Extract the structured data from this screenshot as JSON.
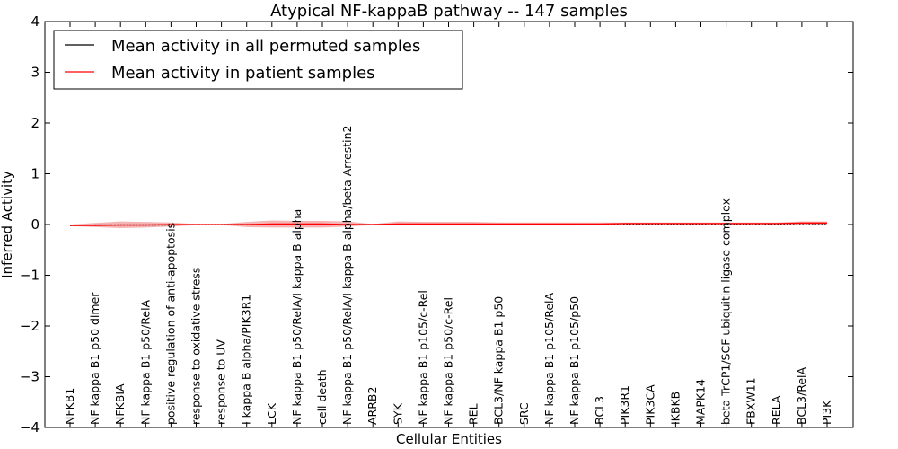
{
  "chart_data": {
    "type": "line",
    "title": "Atypical NF-kappaB pathway -- 147 samples",
    "xlabel": "Cellular Entities",
    "ylabel": "Inferred Activity",
    "ylim": [
      -4,
      4
    ],
    "yticks": [
      "−4",
      "−3",
      "−2",
      "−1",
      "0",
      "1",
      "2",
      "3",
      "4"
    ],
    "ytick_values": [
      -4,
      -3,
      -2,
      -1,
      0,
      1,
      2,
      3,
      4
    ],
    "grid": false,
    "legend_position": "top-left",
    "categories": [
      "NFKB1",
      "NF kappa B1 p50 dimer",
      "NFKBIA",
      "NF kappa B1 p50/RelA",
      "positive regulation of anti-apoptosis",
      "response to oxidative stress",
      "response to UV",
      "I kappa B alpha/PIK3R1",
      "LCK",
      "NF kappa B1 p50/RelA/I kappa B alpha",
      "cell death",
      "NF kappa B1 p50/RelA/I kappa B alpha/beta Arrestin2",
      "ARRB2",
      "SYK",
      "NF kappa B1 p105/c-Rel",
      "NF kappa B1 p50/c-Rel",
      "REL",
      "BCL3/NF kappa B1 p50",
      "SRC",
      "NF kappa B1 p105/RelA",
      "NF kappa B1 p105/p50",
      "BCL3",
      "PIK3R1",
      "PIK3CA",
      "IKBKB",
      "MAPK14",
      "beta TrCP1/SCF ubiquitin ligase complex",
      "FBXW11",
      "RELA",
      "BCL3/RelA",
      "PI3K"
    ],
    "series": [
      {
        "name": "Mean activity in all permuted samples",
        "color": "#000000",
        "style": "dotted",
        "values": [
          -0.02,
          -0.01,
          -0.01,
          -0.01,
          -0.01,
          0.0,
          0.0,
          0.0,
          0.0,
          0.0,
          0.0,
          0.0,
          0.0,
          0.0,
          0.0,
          0.0,
          0.0,
          0.0,
          0.0,
          0.0,
          0.0,
          0.0,
          0.0,
          0.0,
          0.0,
          0.0,
          0.0,
          0.0,
          0.0,
          0.0,
          0.0
        ],
        "band_lower": [
          -0.03,
          -0.03,
          -0.02,
          -0.02,
          -0.02,
          -0.01,
          -0.01,
          -0.01,
          -0.01,
          -0.01,
          -0.01,
          -0.01,
          -0.01,
          -0.01,
          -0.01,
          -0.01,
          -0.01,
          -0.01,
          -0.01,
          -0.01,
          -0.01,
          -0.01,
          -0.01,
          -0.01,
          -0.01,
          -0.01,
          -0.01,
          -0.01,
          -0.01,
          -0.01,
          -0.01
        ],
        "band_upper": [
          0.0,
          0.01,
          0.01,
          0.01,
          0.01,
          0.01,
          0.01,
          0.01,
          0.01,
          0.01,
          0.01,
          0.01,
          0.01,
          0.01,
          0.01,
          0.01,
          0.01,
          0.01,
          0.01,
          0.01,
          0.01,
          0.01,
          0.01,
          0.01,
          0.01,
          0.01,
          0.01,
          0.01,
          0.01,
          0.01,
          0.01
        ]
      },
      {
        "name": "Mean activity in patient samples",
        "color": "#ff0000",
        "style": "solid",
        "values": [
          -0.02,
          -0.02,
          -0.01,
          -0.01,
          0.0,
          0.0,
          0.0,
          0.0,
          0.01,
          0.01,
          0.01,
          0.0,
          0.0,
          0.01,
          0.01,
          0.01,
          0.01,
          0.01,
          0.01,
          0.01,
          0.01,
          0.01,
          0.02,
          0.02,
          0.02,
          0.02,
          0.02,
          0.02,
          0.02,
          0.03,
          0.03
        ],
        "band_lower": [
          -0.03,
          -0.05,
          -0.07,
          -0.06,
          -0.04,
          -0.01,
          -0.01,
          -0.05,
          -0.06,
          -0.06,
          -0.06,
          -0.04,
          -0.01,
          -0.01,
          -0.02,
          -0.02,
          -0.02,
          -0.02,
          -0.02,
          -0.02,
          -0.02,
          -0.01,
          -0.01,
          -0.01,
          -0.01,
          -0.01,
          -0.01,
          -0.01,
          -0.01,
          -0.01,
          -0.01
        ],
        "band_upper": [
          0.0,
          0.03,
          0.06,
          0.05,
          0.04,
          0.01,
          0.01,
          0.05,
          0.08,
          0.07,
          0.07,
          0.06,
          0.01,
          0.06,
          0.05,
          0.05,
          0.05,
          0.04,
          0.04,
          0.04,
          0.04,
          0.04,
          0.04,
          0.04,
          0.04,
          0.04,
          0.04,
          0.04,
          0.04,
          0.06,
          0.06
        ]
      }
    ]
  }
}
